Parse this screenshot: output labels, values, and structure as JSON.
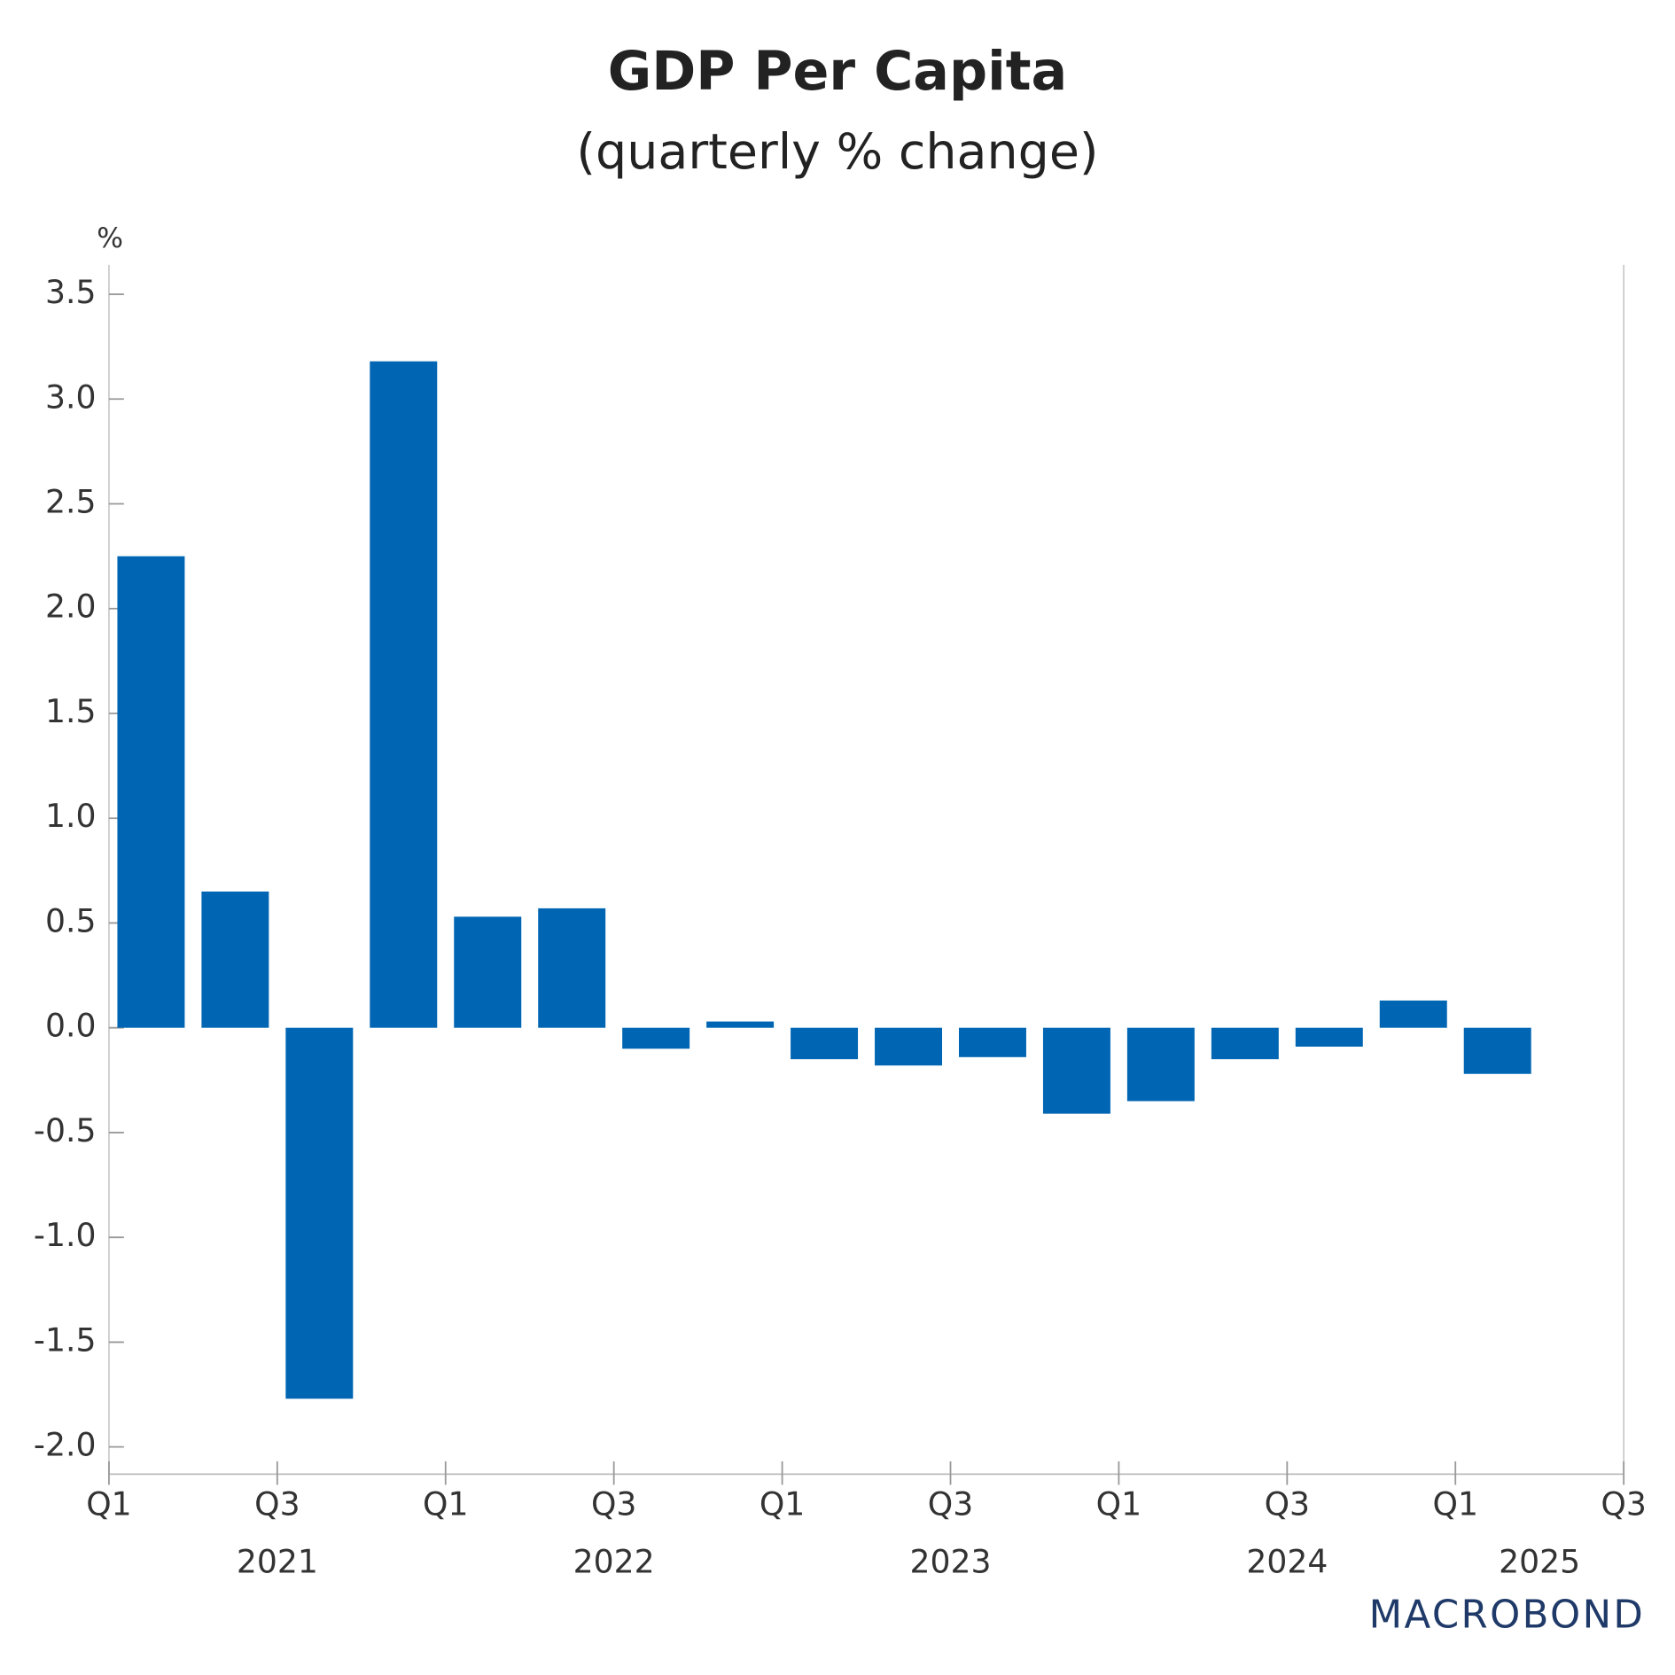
{
  "chart_data": {
    "type": "bar",
    "title": "GDP Per Capita",
    "subtitle": "(quarterly % change)",
    "y_unit": "%",
    "color": "#0066b3",
    "x": [
      2021,
      2021.25,
      2021.5,
      2021.75,
      2022,
      2022.25,
      2022.5,
      2022.75,
      2023,
      2023.25,
      2023.5,
      2023.75,
      2024,
      2024.25,
      2024.5,
      2024.75,
      2025
    ],
    "values": [
      2.25,
      0.65,
      -1.77,
      3.18,
      0.53,
      0.57,
      -0.1,
      0.03,
      -0.15,
      -0.18,
      -0.14,
      -0.41,
      -0.35,
      -0.15,
      -0.09,
      0.13,
      -0.22
    ],
    "xlim": [
      2021,
      2025.5
    ],
    "xticks": [
      {
        "value": 2021,
        "label": "Q1"
      },
      {
        "value": 2021.5,
        "label": "Q3"
      },
      {
        "value": 2022,
        "label": "Q1"
      },
      {
        "value": 2022.5,
        "label": "Q3"
      },
      {
        "value": 2023,
        "label": "Q1"
      },
      {
        "value": 2023.5,
        "label": "Q3"
      },
      {
        "value": 2024,
        "label": "Q1"
      },
      {
        "value": 2024.5,
        "label": "Q3"
      },
      {
        "value": 2025,
        "label": "Q1"
      },
      {
        "value": 2025.5,
        "label": "Q3"
      }
    ],
    "year_labels": [
      {
        "value": 2021.5,
        "label": "2021"
      },
      {
        "value": 2022.5,
        "label": "2022"
      },
      {
        "value": 2023.5,
        "label": "2023"
      },
      {
        "value": 2024.5,
        "label": "2024"
      },
      {
        "value": 2025.25,
        "label": "2025"
      }
    ],
    "ylim": [
      -2.13,
      3.64
    ],
    "yticks": [
      {
        "value": -2,
        "label": "-2.0"
      },
      -1.5,
      {
        "value": -1,
        "label": "-1.0"
      },
      -0.5,
      {
        "value": 0,
        "label": "0.0"
      },
      0.5,
      {
        "value": 1,
        "label": "1.0"
      },
      1.5,
      {
        "value": 2,
        "label": "2.0"
      },
      2.5,
      {
        "value": 3,
        "label": "3.0"
      },
      3.5
    ],
    "source": "MACROBOND"
  }
}
